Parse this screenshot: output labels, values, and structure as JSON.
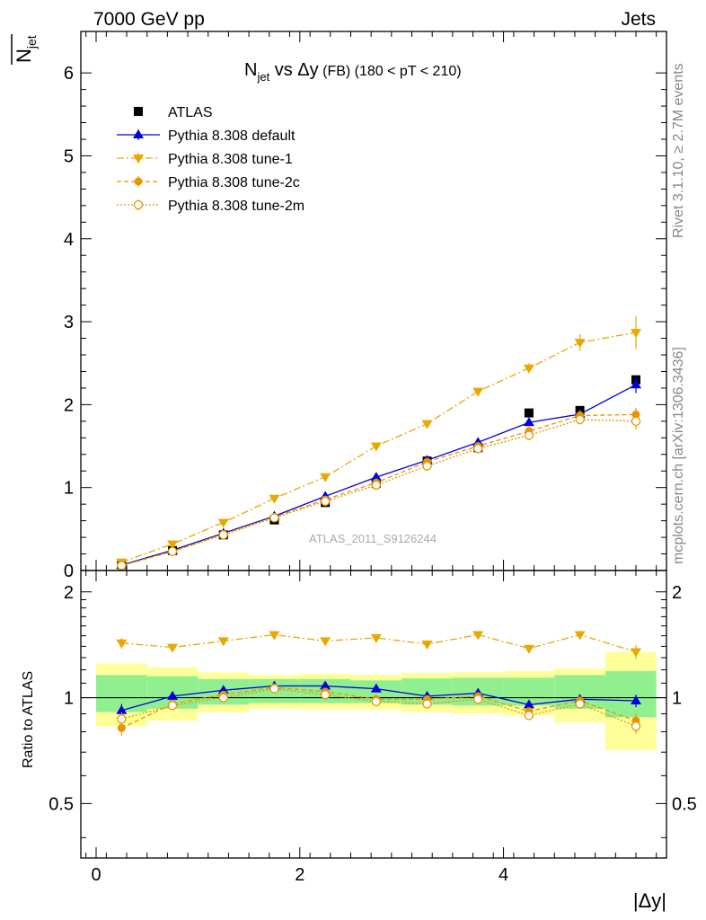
{
  "header": {
    "left": "7000 GeV pp",
    "right": "Jets"
  },
  "side_labels": {
    "rivet": "Rivet 3.1.10, ≥ 2.7M events",
    "mcplots": "mcplots.cern.ch [arXiv:1306.3436]"
  },
  "analysis_ref": "ATLAS_2011_S9126244",
  "main_title": {
    "base": "N",
    "sub": "jet",
    "rest": " vs Δy",
    "small": " (FB)",
    "range": " (180 < pT < 210)"
  },
  "y_label": {
    "base": "N",
    "sub": "jet"
  },
  "ratio_ylabel": "Ratio to ATLAS",
  "x_label": "|Δy|",
  "chart_data": [
    {
      "type": "scatter",
      "panel": "main",
      "x": [
        0.25,
        0.75,
        1.25,
        1.75,
        2.25,
        2.75,
        3.25,
        3.75,
        4.25,
        4.75,
        5.3
      ],
      "xlim": [
        -0.15,
        5.6
      ],
      "ylim": [
        0,
        6.5
      ],
      "yticks": [
        0,
        1,
        2,
        3,
        4,
        5,
        6
      ],
      "xticks": [
        0,
        2,
        4
      ],
      "series": [
        {
          "name": "ATLAS",
          "color": "#000000",
          "marker": "square",
          "line": "none",
          "values": [
            0.07,
            0.24,
            0.43,
            0.61,
            0.82,
            1.05,
            1.32,
            1.48,
            1.9,
            1.93,
            2.3
          ],
          "err": [
            0.01,
            0.02,
            0.02,
            0.03,
            0.03,
            0.04,
            0.04,
            0.05,
            0.05,
            0.05,
            0.05
          ]
        },
        {
          "name": "Pythia 8.308 default",
          "color": "#0000dd",
          "marker": "triangle-up",
          "line": "solid",
          "values": [
            0.065,
            0.245,
            0.45,
            0.655,
            0.895,
            1.125,
            1.33,
            1.545,
            1.785,
            1.885,
            2.24
          ],
          "err": [
            0.005,
            0.01,
            0.01,
            0.015,
            0.02,
            0.02,
            0.025,
            0.03,
            0.04,
            0.06,
            0.1
          ]
        },
        {
          "name": "Pythia 8.308 tune-1",
          "color": "#e8a800",
          "marker": "triangle-down",
          "line": "dashdot",
          "values": [
            0.1,
            0.32,
            0.58,
            0.87,
            1.13,
            1.5,
            1.77,
            2.16,
            2.44,
            2.75,
            2.87
          ],
          "err": [
            0.005,
            0.01,
            0.015,
            0.02,
            0.025,
            0.03,
            0.035,
            0.04,
            0.06,
            0.1,
            0.2
          ]
        },
        {
          "name": "Pythia 8.308 tune-2c",
          "color": "#e89500",
          "marker": "circle",
          "line": "dashed",
          "values": [
            0.06,
            0.23,
            0.44,
            0.645,
            0.855,
            1.06,
            1.31,
            1.5,
            1.68,
            1.87,
            1.88
          ],
          "err": [
            0.005,
            0.01,
            0.01,
            0.015,
            0.02,
            0.02,
            0.025,
            0.03,
            0.04,
            0.06,
            0.08
          ]
        },
        {
          "name": "Pythia 8.308 tune-2m",
          "color": "#e89500",
          "marker": "circle-open",
          "line": "dotted",
          "values": [
            0.06,
            0.23,
            0.43,
            0.635,
            0.835,
            1.03,
            1.26,
            1.47,
            1.63,
            1.82,
            1.8
          ],
          "err": [
            0.005,
            0.01,
            0.01,
            0.015,
            0.02,
            0.02,
            0.025,
            0.03,
            0.04,
            0.06,
            0.1
          ]
        }
      ]
    },
    {
      "type": "scatter",
      "panel": "ratio",
      "x": [
        0.25,
        0.75,
        1.25,
        1.75,
        2.25,
        2.75,
        3.25,
        3.75,
        4.25,
        4.75,
        5.3
      ],
      "xlim": [
        -0.15,
        5.6
      ],
      "ylim": [
        0.35,
        2.3
      ],
      "yticks": [
        0.5,
        1,
        2
      ],
      "xticks": [
        0,
        2,
        4
      ],
      "bins": [
        [
          0.0,
          0.5
        ],
        [
          0.5,
          1.0
        ],
        [
          1.0,
          1.5
        ],
        [
          1.5,
          2.0
        ],
        [
          2.0,
          2.5
        ],
        [
          2.5,
          3.0
        ],
        [
          3.0,
          3.5
        ],
        [
          3.5,
          4.0
        ],
        [
          4.0,
          4.5
        ],
        [
          4.5,
          5.0
        ],
        [
          5.0,
          5.5
        ]
      ],
      "band_inner": [
        [
          0.91,
          1.16
        ],
        [
          0.93,
          1.15
        ],
        [
          0.955,
          1.13
        ],
        [
          0.965,
          1.13
        ],
        [
          0.965,
          1.13
        ],
        [
          0.965,
          1.12
        ],
        [
          0.955,
          1.135
        ],
        [
          0.95,
          1.14
        ],
        [
          0.95,
          1.14
        ],
        [
          0.93,
          1.16
        ],
        [
          0.88,
          1.19
        ]
      ],
      "band_outer": [
        [
          0.83,
          1.25
        ],
        [
          0.86,
          1.22
        ],
        [
          0.91,
          1.18
        ],
        [
          0.93,
          1.16
        ],
        [
          0.925,
          1.17
        ],
        [
          0.925,
          1.16
        ],
        [
          0.91,
          1.175
        ],
        [
          0.9,
          1.18
        ],
        [
          0.89,
          1.19
        ],
        [
          0.85,
          1.21
        ],
        [
          0.71,
          1.35
        ]
      ],
      "series": [
        {
          "name": "Pythia 8.308 default",
          "color": "#0000dd",
          "marker": "triangle-up",
          "line": "solid",
          "values": [
            0.92,
            1.01,
            1.05,
            1.08,
            1.08,
            1.06,
            1.01,
            1.03,
            0.955,
            0.99,
            0.98
          ],
          "err": [
            0.04,
            0.02,
            0.015,
            0.015,
            0.015,
            0.015,
            0.015,
            0.015,
            0.02,
            0.03,
            0.04
          ]
        },
        {
          "name": "Pythia 8.308 tune-1",
          "color": "#e8a800",
          "marker": "triangle-down",
          "line": "dashdot",
          "values": [
            1.43,
            1.39,
            1.45,
            1.51,
            1.45,
            1.48,
            1.42,
            1.51,
            1.38,
            1.51,
            1.35
          ],
          "err": [
            0.05,
            0.03,
            0.02,
            0.02,
            0.02,
            0.02,
            0.02,
            0.02,
            0.03,
            0.04,
            0.06
          ]
        },
        {
          "name": "Pythia 8.308 tune-2c",
          "color": "#e89500",
          "marker": "circle",
          "line": "dashed",
          "values": [
            0.82,
            0.96,
            1.02,
            1.07,
            1.04,
            0.99,
            0.99,
            1.01,
            0.915,
            0.98,
            0.86
          ],
          "err": [
            0.04,
            0.02,
            0.015,
            0.015,
            0.015,
            0.015,
            0.015,
            0.015,
            0.02,
            0.03,
            0.04
          ]
        },
        {
          "name": "Pythia 8.308 tune-2m",
          "color": "#e89500",
          "marker": "circle-open",
          "line": "dotted",
          "values": [
            0.87,
            0.95,
            1.0,
            1.06,
            1.02,
            0.975,
            0.96,
            0.99,
            0.89,
            0.96,
            0.83
          ],
          "err": [
            0.04,
            0.02,
            0.015,
            0.015,
            0.015,
            0.015,
            0.015,
            0.015,
            0.02,
            0.03,
            0.04
          ]
        }
      ]
    }
  ],
  "colors": {
    "band_inner": "#90f090",
    "band_outer": "#ffff99"
  }
}
